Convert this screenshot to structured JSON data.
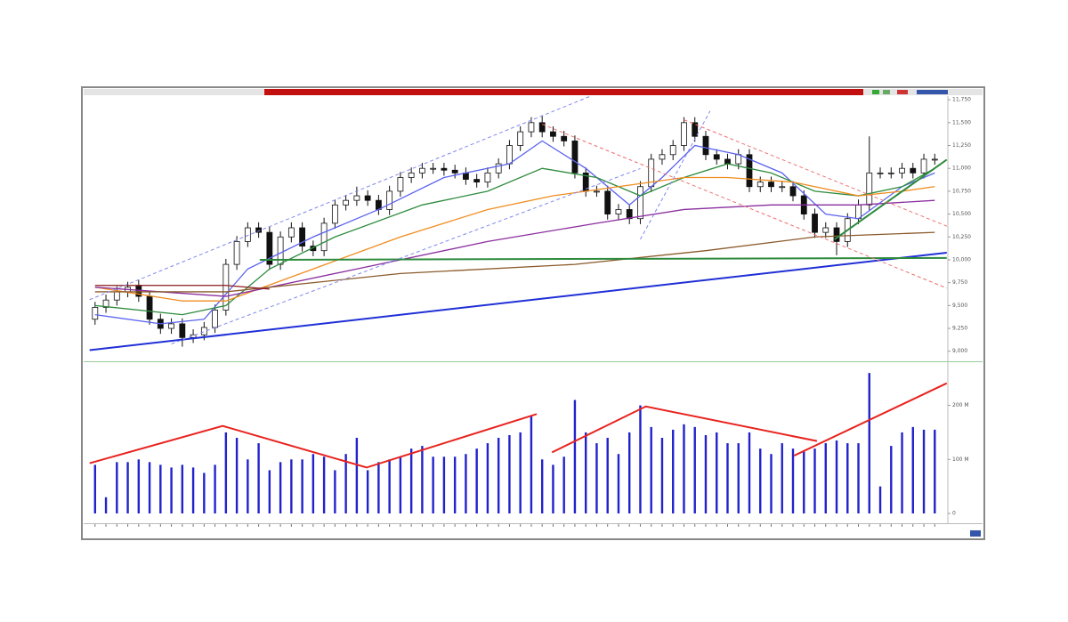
{
  "chart_data": [
    {
      "type": "candlestick",
      "x": [
        0,
        1,
        2,
        3,
        4,
        5,
        6,
        7,
        8,
        9,
        10,
        11,
        12,
        13,
        14,
        15,
        16,
        17,
        18,
        19,
        20,
        21,
        22,
        23,
        24,
        25,
        26,
        27,
        28,
        29,
        30,
        31,
        32,
        33,
        34,
        35,
        36,
        37,
        38,
        39,
        40,
        41,
        42,
        43,
        44,
        45,
        46,
        47,
        48,
        49,
        50,
        51,
        52,
        53,
        54,
        55,
        56,
        57,
        58,
        59,
        60,
        61,
        62,
        63,
        64,
        65,
        66,
        67,
        68,
        69,
        70,
        71,
        72,
        73,
        74,
        75,
        76,
        77
      ],
      "open": [
        9350,
        9480,
        9560,
        9650,
        9720,
        9600,
        9350,
        9250,
        9300,
        9150,
        9180,
        9260,
        9450,
        9950,
        10200,
        10350,
        10300,
        9950,
        10250,
        10350,
        10150,
        10100,
        10400,
        10600,
        10650,
        10700,
        10650,
        10550,
        10750,
        10900,
        10950,
        11000,
        11000,
        10980,
        10950,
        10880,
        10850,
        10950,
        11050,
        11250,
        11400,
        11500,
        11400,
        11350,
        11300,
        10950,
        10750,
        10750,
        10500,
        10550,
        10450,
        10800,
        11100,
        11150,
        11250,
        11500,
        11350,
        11150,
        11100,
        11050,
        11150,
        10800,
        10850,
        10800,
        10800,
        10700,
        10500,
        10300,
        10350,
        10200,
        10450,
        10600,
        10950,
        10950,
        10950,
        11000,
        10950,
        11100
      ],
      "high": [
        9540,
        9620,
        9710,
        9760,
        9780,
        9660,
        9410,
        9360,
        9360,
        9240,
        9320,
        9510,
        10010,
        10260,
        10410,
        10410,
        10360,
        10310,
        10410,
        10410,
        10210,
        10460,
        10660,
        10710,
        10800,
        10760,
        10710,
        10810,
        10960,
        11010,
        11060,
        11060,
        11060,
        11040,
        11010,
        10940,
        11010,
        11110,
        11310,
        11460,
        11560,
        11580,
        11460,
        11410,
        11360,
        11010,
        10810,
        10810,
        10610,
        10610,
        10860,
        11160,
        11210,
        11310,
        11560,
        11560,
        11410,
        11210,
        11160,
        11210,
        11210,
        10910,
        10910,
        10860,
        10860,
        10760,
        10560,
        10410,
        10410,
        10510,
        10660,
        11350,
        11010,
        11010,
        11060,
        11060,
        11160,
        11160
      ],
      "low": [
        9290,
        9420,
        9500,
        9590,
        9540,
        9290,
        9190,
        9190,
        9050,
        9090,
        9120,
        9200,
        9390,
        9890,
        10140,
        10240,
        9890,
        9890,
        10190,
        10090,
        10040,
        10040,
        10340,
        10540,
        10590,
        10590,
        10490,
        10490,
        10690,
        10840,
        10890,
        10940,
        10920,
        10890,
        10820,
        10790,
        10790,
        10890,
        10990,
        11190,
        11340,
        11340,
        11290,
        11240,
        10890,
        10690,
        10690,
        10440,
        10440,
        10390,
        10390,
        10740,
        11040,
        11090,
        11190,
        11290,
        11090,
        11040,
        10990,
        10990,
        10740,
        10740,
        10740,
        10740,
        10640,
        10440,
        10240,
        10240,
        10050,
        10140,
        10390,
        10540,
        10890,
        10890,
        10890,
        10890,
        10890,
        11040
      ],
      "close": [
        9480,
        9560,
        9650,
        9700,
        9600,
        9350,
        9250,
        9300,
        9150,
        9180,
        9260,
        9450,
        9950,
        10200,
        10350,
        10300,
        9950,
        10250,
        10350,
        10150,
        10100,
        10400,
        10600,
        10650,
        10700,
        10650,
        10550,
        10750,
        10900,
        10950,
        11000,
        11000,
        10980,
        10950,
        10880,
        10850,
        10950,
        11050,
        11250,
        11400,
        11500,
        11400,
        11350,
        11300,
        10950,
        10750,
        10750,
        10500,
        10550,
        10450,
        10800,
        11100,
        11150,
        11250,
        11500,
        11350,
        11150,
        11100,
        11050,
        11150,
        10800,
        10850,
        10800,
        10800,
        10700,
        10500,
        10300,
        10350,
        10200,
        10450,
        10600,
        10950,
        10950,
        10950,
        11000,
        10950,
        11100,
        11100
      ],
      "xlim": [
        -0.8,
        78.2
      ],
      "ylim": [
        8900,
        11800
      ],
      "yticks": [
        {
          "value": 11750,
          "label": "11,750"
        },
        {
          "value": 11500,
          "label": "11,500"
        },
        {
          "value": 11250,
          "label": "11,250"
        },
        {
          "value": 11000,
          "label": "11,000"
        },
        {
          "value": 10750,
          "label": "10,750"
        },
        {
          "value": 10500,
          "label": "10,500"
        },
        {
          "value": 10250,
          "label": "10,250"
        },
        {
          "value": 10000,
          "label": "10,000"
        },
        {
          "value": 9750,
          "label": "9,750"
        },
        {
          "value": 9500,
          "label": "9,500"
        },
        {
          "value": 9250,
          "label": "9,250"
        },
        {
          "value": 9000,
          "label": "9,000"
        }
      ],
      "series": [
        {
          "color": "#5b63ee",
          "x": [
            0,
            6,
            10,
            14,
            20,
            26,
            32,
            38,
            41,
            45,
            49,
            52,
            55,
            59,
            63,
            67,
            70,
            74,
            77
          ],
          "values": [
            9400,
            9300,
            9350,
            9900,
            10250,
            10550,
            10900,
            11050,
            11300,
            11000,
            10600,
            10900,
            11250,
            11150,
            10950,
            10500,
            10450,
            10800,
            10950
          ]
        },
        {
          "color": "#2e8b3e",
          "x": [
            0,
            8,
            12,
            16,
            22,
            30,
            36,
            41,
            46,
            50,
            54,
            58,
            62,
            66,
            70,
            74,
            77
          ],
          "values": [
            9500,
            9400,
            9500,
            9900,
            10250,
            10600,
            10750,
            11000,
            10900,
            10700,
            10900,
            11050,
            10950,
            10750,
            10700,
            10800,
            11000
          ]
        },
        {
          "color": "#f08c1e",
          "x": [
            0,
            8,
            12,
            20,
            28,
            36,
            42,
            48,
            54,
            58,
            64,
            70,
            74,
            77
          ],
          "values": [
            9700,
            9550,
            9550,
            9900,
            10250,
            10550,
            10700,
            10800,
            10900,
            10900,
            10850,
            10700,
            10750,
            10800
          ]
        },
        {
          "color": "#8a2e9e",
          "x": [
            0,
            12,
            24,
            36,
            46,
            54,
            62,
            70,
            77
          ],
          "values": [
            9700,
            9600,
            9900,
            10200,
            10400,
            10550,
            10600,
            10600,
            10650
          ]
        },
        {
          "color": "#8b5a2b",
          "x": [
            0,
            12,
            28,
            44,
            56,
            66,
            77
          ],
          "values": [
            9650,
            9650,
            9850,
            9950,
            10100,
            10250,
            10300
          ]
        },
        {
          "color": "#8b1a1a",
          "x": [
            0,
            12,
            16
          ],
          "values": [
            9720,
            9720,
            9680
          ]
        }
      ],
      "lines": [
        {
          "color": "#1f2fd6",
          "dash": false,
          "x": [
            -0.5,
            78.1
          ],
          "values": [
            9012,
            10078
          ]
        },
        {
          "color": "#2e8b3e",
          "dash": false,
          "x": [
            15.1,
            78.1
          ],
          "values": [
            10000,
            10020
          ]
        },
        {
          "color": "#2e8b3e",
          "dash": false,
          "x": [
            67.8,
            78.1
          ],
          "values": [
            10223,
            11095
          ]
        },
        {
          "color": "#8088ee",
          "dash": true,
          "x": [
            -0.5,
            45.5
          ],
          "values": [
            9564,
            11793
          ]
        },
        {
          "color": "#8088ee",
          "dash": true,
          "x": [
            7,
            50
          ],
          "values": [
            9080,
            10998
          ]
        },
        {
          "color": "#8088ee",
          "dash": true,
          "x": [
            50,
            56.4
          ],
          "values": [
            10223,
            11628
          ]
        },
        {
          "color": "#ee7070",
          "dash": true,
          "x": [
            41,
            78.1
          ],
          "values": [
            11483,
            9690
          ]
        },
        {
          "color": "#ee7070",
          "dash": true,
          "x": [
            54,
            78.1
          ],
          "values": [
            11531,
            10368
          ]
        }
      ]
    },
    {
      "type": "bar",
      "x": [
        0,
        1,
        2,
        3,
        4,
        5,
        6,
        7,
        8,
        9,
        10,
        11,
        12,
        13,
        14,
        15,
        16,
        17,
        18,
        19,
        20,
        21,
        22,
        23,
        24,
        25,
        26,
        27,
        28,
        29,
        30,
        31,
        32,
        33,
        34,
        35,
        36,
        37,
        38,
        39,
        40,
        41,
        42,
        43,
        44,
        45,
        46,
        47,
        48,
        49,
        50,
        51,
        52,
        53,
        54,
        55,
        56,
        57,
        58,
        59,
        60,
        61,
        62,
        63,
        64,
        65,
        66,
        67,
        68,
        69,
        70,
        71,
        72,
        73,
        74,
        75,
        76,
        77
      ],
      "values": [
        90,
        30,
        95,
        95,
        100,
        95,
        90,
        85,
        90,
        85,
        75,
        90,
        150,
        140,
        100,
        130,
        80,
        95,
        100,
        100,
        110,
        105,
        80,
        110,
        140,
        80,
        95,
        100,
        105,
        120,
        125,
        105,
        105,
        105,
        110,
        120,
        130,
        140,
        145,
        150,
        180,
        100,
        90,
        105,
        210,
        150,
        130,
        140,
        110,
        150,
        200,
        160,
        140,
        155,
        165,
        160,
        145,
        150,
        130,
        130,
        150,
        120,
        110,
        130,
        120,
        115,
        120,
        130,
        135,
        130,
        130,
        260,
        50,
        125,
        150,
        160,
        155,
        155
      ],
      "color": "#2222cc",
      "xlim": [
        -0.8,
        78.2
      ],
      "ylim": [
        0,
        280
      ],
      "yticks": [
        {
          "value": 200,
          "label": "200 M"
        },
        {
          "value": 100,
          "label": "100 M"
        },
        0
      ],
      "lines": [
        {
          "color": "#e8231e",
          "dash": false,
          "x": [
            -0.5,
            11.7,
            24.9,
            40.5
          ],
          "values": [
            93,
            162,
            85,
            184
          ]
        },
        {
          "color": "#e8231e",
          "dash": false,
          "x": [
            41.9,
            50.5,
            66.2
          ],
          "values": [
            113,
            198,
            134
          ]
        },
        {
          "color": "#e8231e",
          "dash": false,
          "x": [
            64.1,
            78.1
          ],
          "values": [
            107,
            241
          ]
        }
      ]
    }
  ]
}
